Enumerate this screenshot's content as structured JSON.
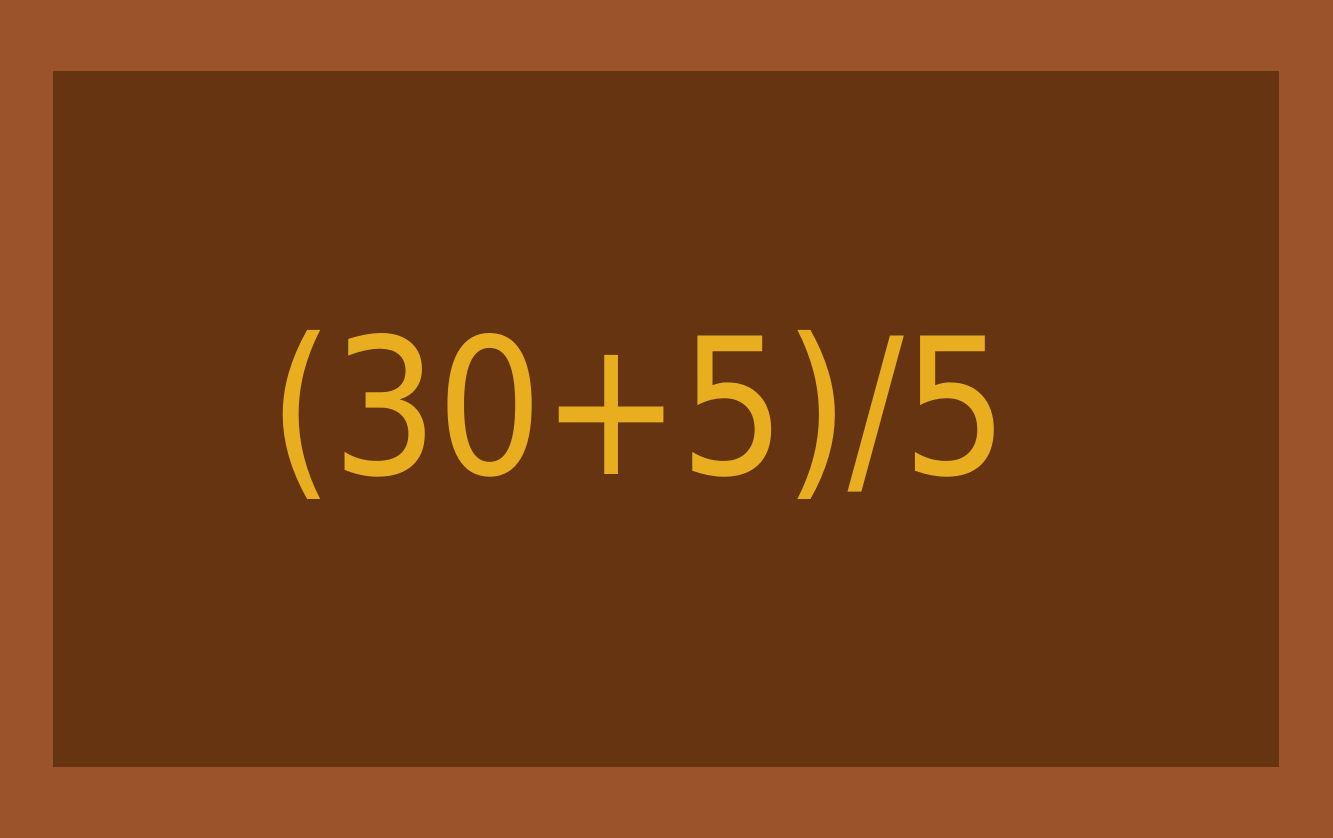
{
  "card": {
    "expression": "(30+5)/5"
  },
  "colors": {
    "frame": "#9a532a",
    "board": "#663411",
    "text": "#e8ae20"
  }
}
